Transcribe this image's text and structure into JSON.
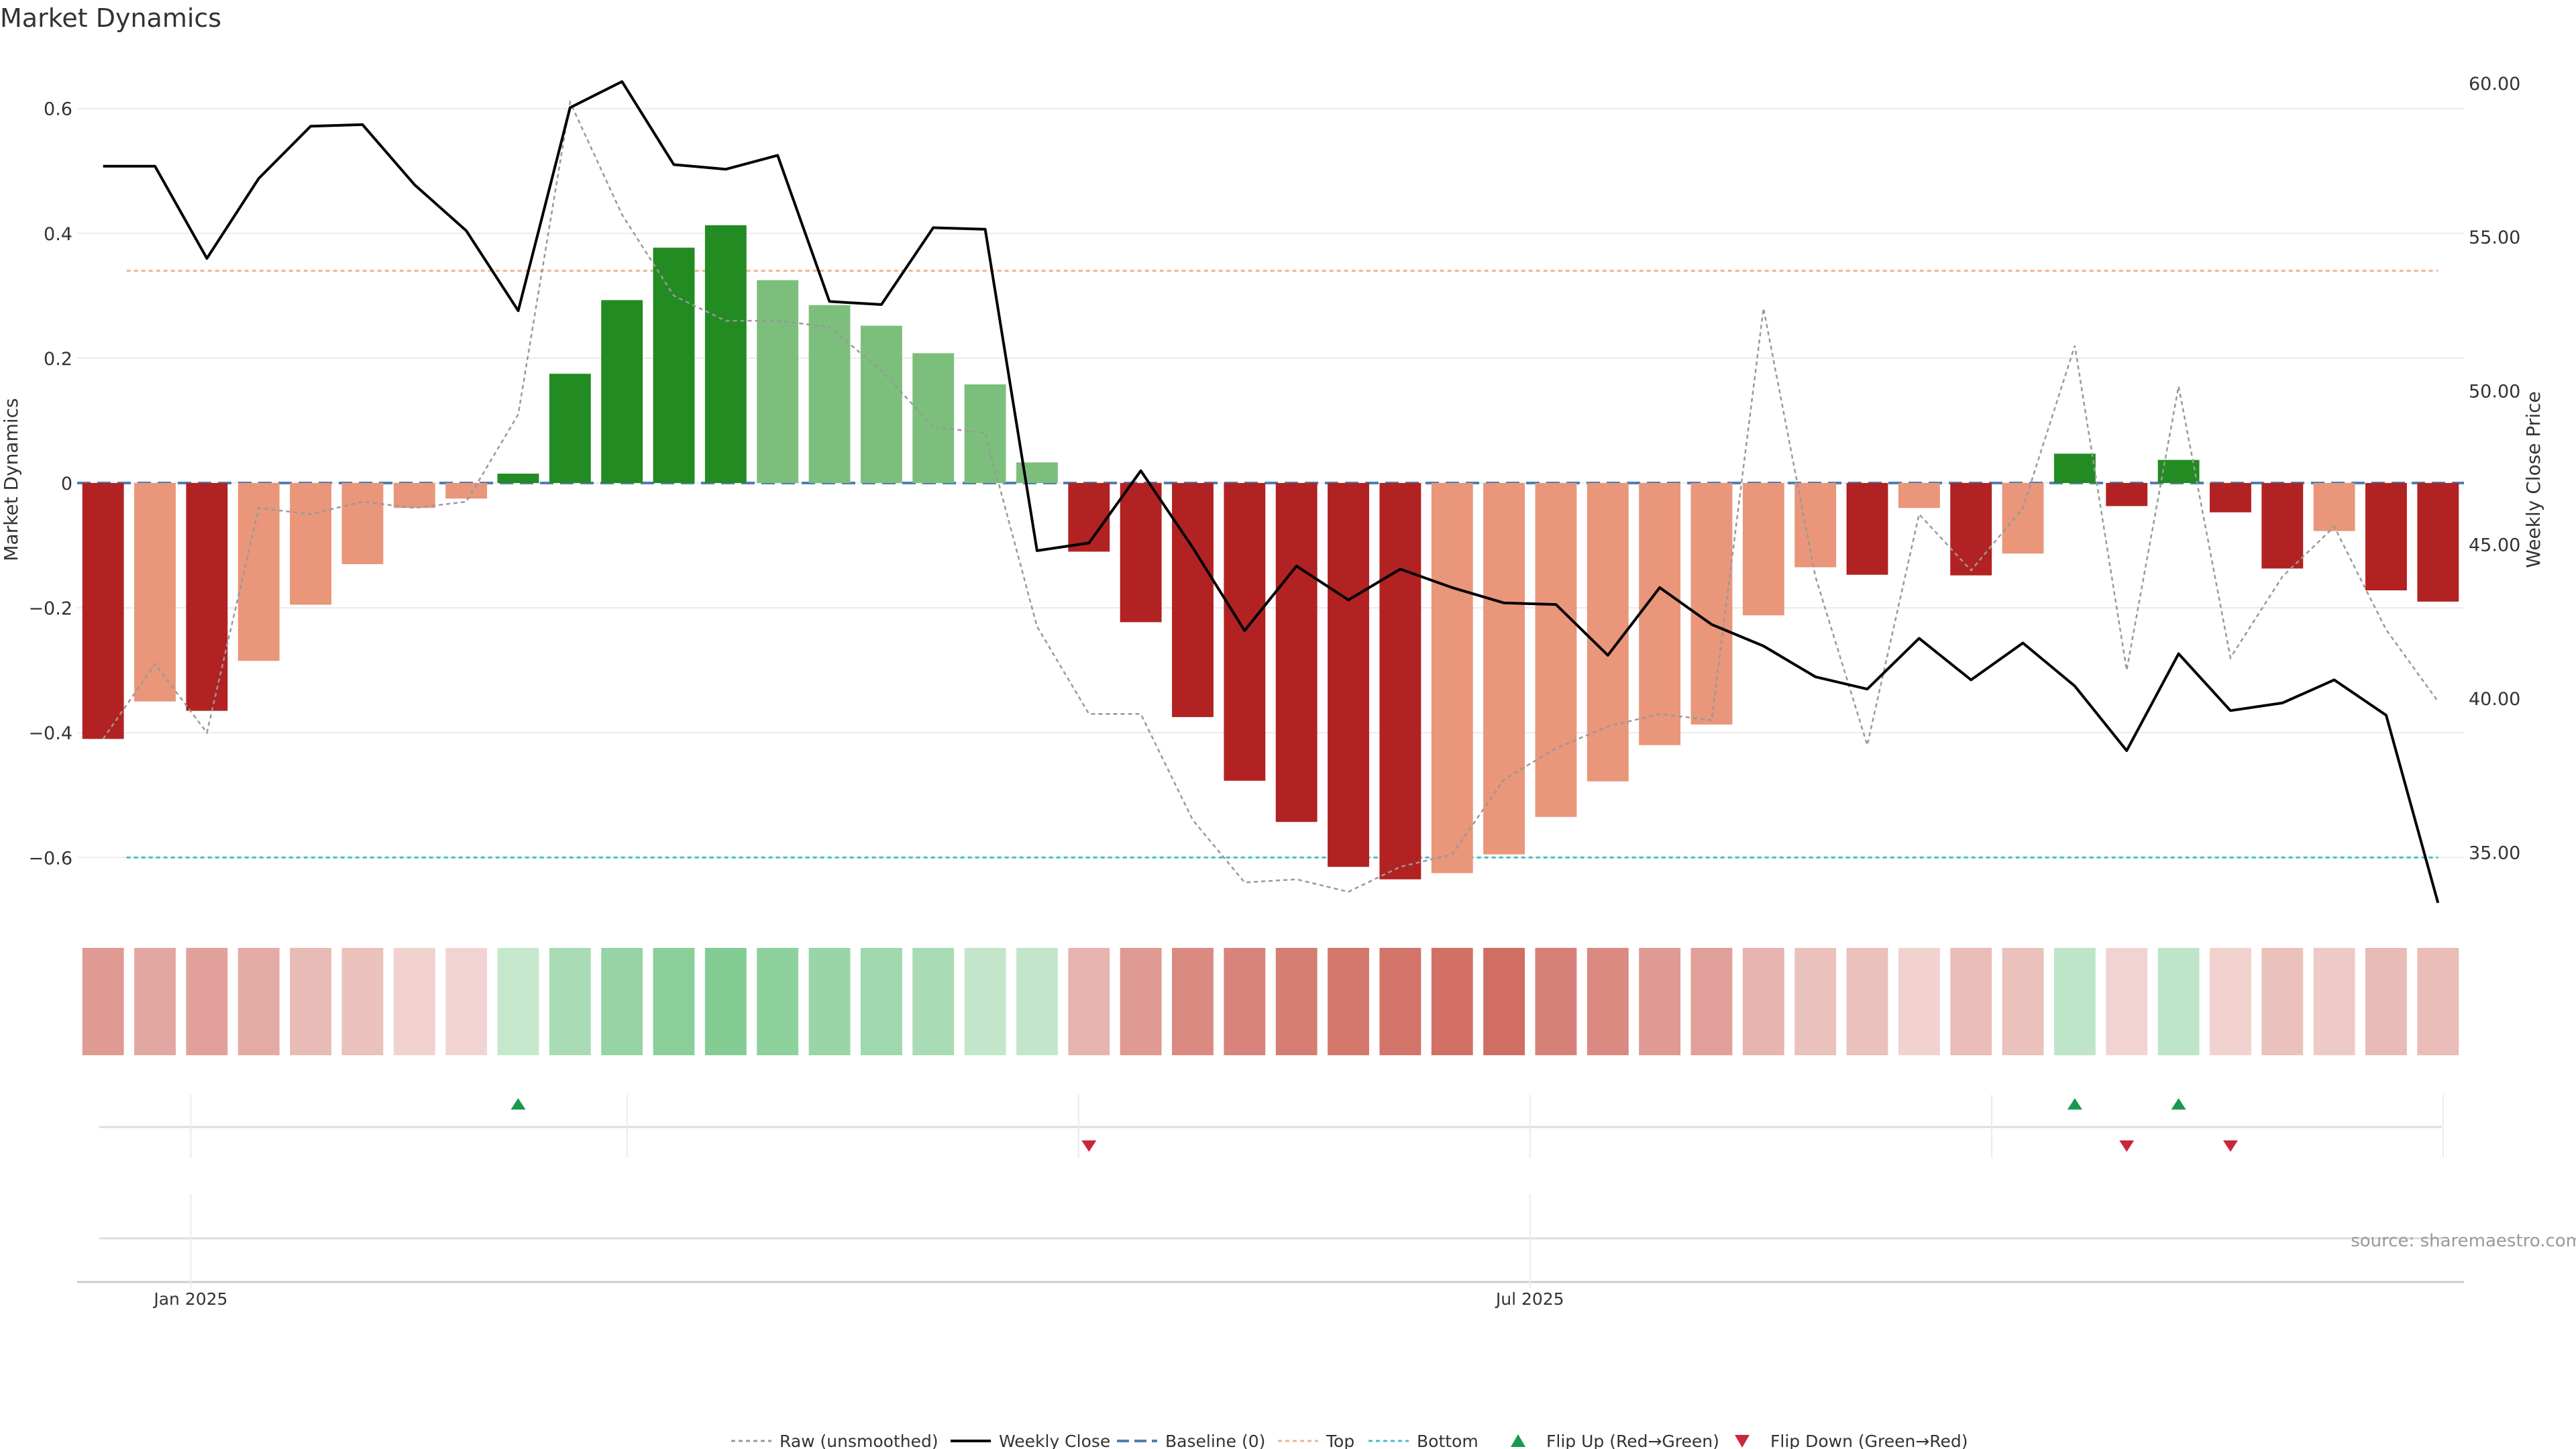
{
  "chart_data": {
    "type": "bar",
    "title": "Market Dynamics",
    "ylabel": "Market Dynamics",
    "y2label": "Weekly Close Price",
    "ylim": [
      -0.69,
      0.69
    ],
    "y2lim": [
      33.0,
      61.0
    ],
    "yticks": [
      0.6,
      0.4,
      0.2,
      0,
      -0.2,
      -0.4,
      -0.6
    ],
    "ytick_labels": [
      "0.6",
      "0.4",
      "0.2",
      "0",
      "−0.2",
      "−0.4",
      "−0.6"
    ],
    "y2ticks": [
      60,
      55,
      50,
      45,
      40,
      35
    ],
    "y2tick_labels": [
      "60.00",
      "55.00",
      "50.00",
      "45.00",
      "40.00",
      "35.00"
    ],
    "top_level": 0.34,
    "bottom_level": -0.6,
    "baseline": 0,
    "x_labels": [
      {
        "label": "Jan 2025",
        "index": 1.69
      },
      {
        "label": "Jul 2025",
        "index": 27.5
      }
    ],
    "minor_x_gridlines": [
      1.69,
      10.1,
      18.8,
      27.5,
      36.4,
      45.1
    ],
    "series": [
      {
        "name": "Market Dynamics",
        "values": [
          -0.41,
          -0.35,
          -0.365,
          -0.285,
          -0.195,
          -0.13,
          -0.04,
          -0.025,
          0.015,
          0.175,
          0.293,
          0.377,
          0.413,
          0.325,
          0.285,
          0.252,
          0.208,
          0.158,
          0.033,
          -0.11,
          -0.223,
          -0.375,
          -0.477,
          -0.543,
          -0.615,
          -0.635,
          -0.625,
          -0.595,
          -0.535,
          -0.478,
          -0.42,
          -0.387,
          -0.212,
          -0.135,
          -0.147,
          -0.04,
          -0.148,
          -0.113,
          0.047,
          -0.037,
          0.037,
          -0.047,
          -0.137,
          -0.077,
          -0.172,
          -0.19
        ],
        "tones": [
          "sd",
          "ld",
          "sd",
          "ld",
          "ld",
          "ld",
          "ld",
          "ld",
          "su",
          "su",
          "su",
          "su",
          "su",
          "lu",
          "lu",
          "lu",
          "lu",
          "lu",
          "lu",
          "sd",
          "sd",
          "sd",
          "sd",
          "sd",
          "sd",
          "sd",
          "ld",
          "ld",
          "ld",
          "ld",
          "ld",
          "ld",
          "ld",
          "ld",
          "sd",
          "ld",
          "sd",
          "ld",
          "su",
          "sd",
          "su",
          "sd",
          "sd",
          "ld",
          "sd",
          "sd"
        ]
      },
      {
        "name": "Raw (unsmoothed)",
        "values": [
          -0.41,
          -0.29,
          -0.4,
          -0.04,
          -0.05,
          -0.03,
          -0.04,
          -0.03,
          0.11,
          0.61,
          0.43,
          0.3,
          0.26,
          0.26,
          0.25,
          0.18,
          0.09,
          0.08,
          -0.23,
          -0.37,
          -0.37,
          -0.54,
          -0.64,
          -0.635,
          -0.655,
          -0.615,
          -0.595,
          -0.475,
          -0.425,
          -0.39,
          -0.37,
          -0.38,
          0.28,
          -0.15,
          -0.42,
          -0.05,
          -0.14,
          -0.04,
          0.22,
          -0.3,
          0.155,
          -0.28,
          -0.15,
          -0.07,
          -0.235,
          -0.35
        ]
      },
      {
        "name": "Weekly Close",
        "values": [
          57.3,
          57.3,
          54.3,
          56.9,
          58.6,
          58.65,
          56.7,
          55.2,
          52.6,
          59.2,
          60.05,
          57.35,
          57.2,
          57.65,
          52.9,
          52.8,
          55.3,
          55.25,
          44.8,
          45.05,
          47.4,
          44.9,
          42.2,
          44.3,
          43.2,
          44.2,
          43.6,
          43.1,
          43.05,
          41.4,
          43.6,
          42.4,
          41.7,
          40.7,
          40.3,
          41.95,
          40.6,
          41.8,
          40.4,
          38.3,
          41.45,
          39.6,
          39.85,
          40.6,
          39.45,
          33.35
        ]
      }
    ],
    "strip_values": [
      0.55,
      0.45,
      0.5,
      0.42,
      0.3,
      0.25,
      0.12,
      0.1,
      0.18,
      0.38,
      0.52,
      0.6,
      0.65,
      0.58,
      0.5,
      0.45,
      0.38,
      0.2,
      0.2,
      0.35,
      0.55,
      0.68,
      0.72,
      0.78,
      0.82,
      0.85,
      0.88,
      0.9,
      0.75,
      0.68,
      0.55,
      0.52,
      0.35,
      0.25,
      0.25,
      0.12,
      0.28,
      0.25,
      0.22,
      0.1,
      0.22,
      0.12,
      0.25,
      0.18,
      0.3,
      0.28
    ],
    "strip_signs": [
      -1,
      -1,
      -1,
      -1,
      -1,
      -1,
      -1,
      -1,
      1,
      1,
      1,
      1,
      1,
      1,
      1,
      1,
      1,
      1,
      1,
      -1,
      -1,
      -1,
      -1,
      -1,
      -1,
      -1,
      -1,
      -1,
      -1,
      -1,
      -1,
      -1,
      -1,
      -1,
      -1,
      -1,
      -1,
      -1,
      1,
      -1,
      1,
      -1,
      -1,
      -1,
      -1,
      -1
    ],
    "flip_up_indices": [
      8,
      38,
      40
    ],
    "flip_down_indices": [
      19,
      39,
      41
    ],
    "legend": [
      {
        "key": "raw",
        "label": "Raw (unsmoothed)"
      },
      {
        "key": "close",
        "label": "Weekly Close"
      },
      {
        "key": "baseline",
        "label": "Baseline (0)"
      },
      {
        "key": "top",
        "label": "Top"
      },
      {
        "key": "bottom",
        "label": "Bottom"
      },
      {
        "key": "flipup",
        "label": "Flip Up (Red→Green)"
      },
      {
        "key": "flipdown",
        "label": "Flip Down (Green→Red)"
      }
    ],
    "source": "source: sharemaestro.com",
    "colors": {
      "strong_down": "#b22222",
      "light_down": "#e9967a",
      "strong_up": "#228b22",
      "light_up": "#7cbf7c",
      "raw": "#999999",
      "close": "#000000",
      "baseline": "#4f7fb0",
      "top": "#f0b48c",
      "bottom": "#40c0d0",
      "flip_up": "#1a9850",
      "flip_down": "#c8283a",
      "strip_red": "#c0392b",
      "strip_green": "#27a745",
      "grid": "#ebebeb",
      "text": "#333333"
    }
  }
}
